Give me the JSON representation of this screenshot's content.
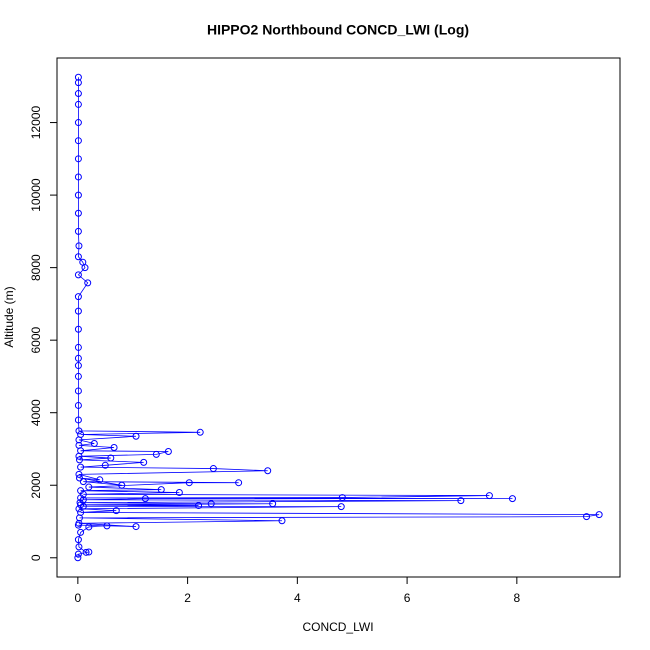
{
  "chart_data": {
    "type": "scatter",
    "connect": true,
    "title": "HIPPO2 Northbound CONCD_LWI (Log)",
    "x_label": "CONCD_LWI",
    "y_label": "Altitude (m)",
    "color": "#0000ff",
    "x": [
      0,
      0.01,
      0.2,
      0.15,
      0.02,
      0.01,
      0.05,
      0.2,
      0.53,
      0.01,
      1.06,
      0.02,
      3.72,
      0.03,
      9.27,
      9.5,
      0.05,
      0.7,
      0.02,
      4.8,
      0.1,
      2.2,
      0.05,
      3.55,
      2.43,
      0.04,
      6.98,
      0.1,
      1.23,
      7.92,
      0.05,
      4.82,
      7.5,
      0.1,
      1.85,
      0.05,
      1.52,
      0.2,
      2.03,
      2.93,
      0.1,
      0.8,
      0.03,
      0.4,
      0.02,
      3.46,
      2.47,
      0.05,
      0.5,
      1.2,
      0.03,
      0.6,
      0.02,
      1.43,
      1.65,
      0.05,
      0.66,
      0.02,
      0.3,
      0.02,
      1.06,
      0.05,
      2.23,
      0.02,
      0.01,
      0.01,
      0.01,
      0.01,
      0.01,
      0.01,
      0.01,
      0.01,
      0.01,
      0.01,
      0.18,
      0.01,
      0.13,
      0.09,
      0.01,
      0.02,
      0.01,
      0.01,
      0.01,
      0.01,
      0.01,
      0.01,
      0.01,
      0.01,
      0.01,
      0.01,
      0.01
    ],
    "y": [
      0,
      100,
      160,
      150,
      300,
      500,
      700,
      850,
      880,
      900,
      860,
      950,
      1020,
      1100,
      1134,
      1190,
      1250,
      1300,
      1350,
      1410,
      1420,
      1440,
      1460,
      1490,
      1490,
      1520,
      1575,
      1600,
      1630,
      1630,
      1650,
      1660,
      1715,
      1750,
      1800,
      1850,
      1880,
      1950,
      2070,
      2070,
      2100,
      2000,
      2200,
      2150,
      2300,
      2400,
      2460,
      2500,
      2550,
      2630,
      2700,
      2750,
      2800,
      2850,
      2930,
      2950,
      3040,
      3100,
      3150,
      3250,
      3350,
      3400,
      3460,
      3500,
      3800,
      4200,
      4600,
      5000,
      5300,
      5500,
      5800,
      6300,
      6800,
      7200,
      7580,
      7800,
      8000,
      8150,
      8300,
      8600,
      9000,
      9500,
      10000,
      10500,
      11000,
      11500,
      12000,
      12500,
      12800,
      13100,
      13250
    ],
    "xlim": [
      -0.38,
      9.88
    ],
    "ylim": [
      -530,
      13780
    ],
    "xticks": [
      0,
      2,
      4,
      6,
      8
    ],
    "yticks": [
      0,
      2000,
      4000,
      6000,
      8000,
      10000,
      12000
    ]
  }
}
